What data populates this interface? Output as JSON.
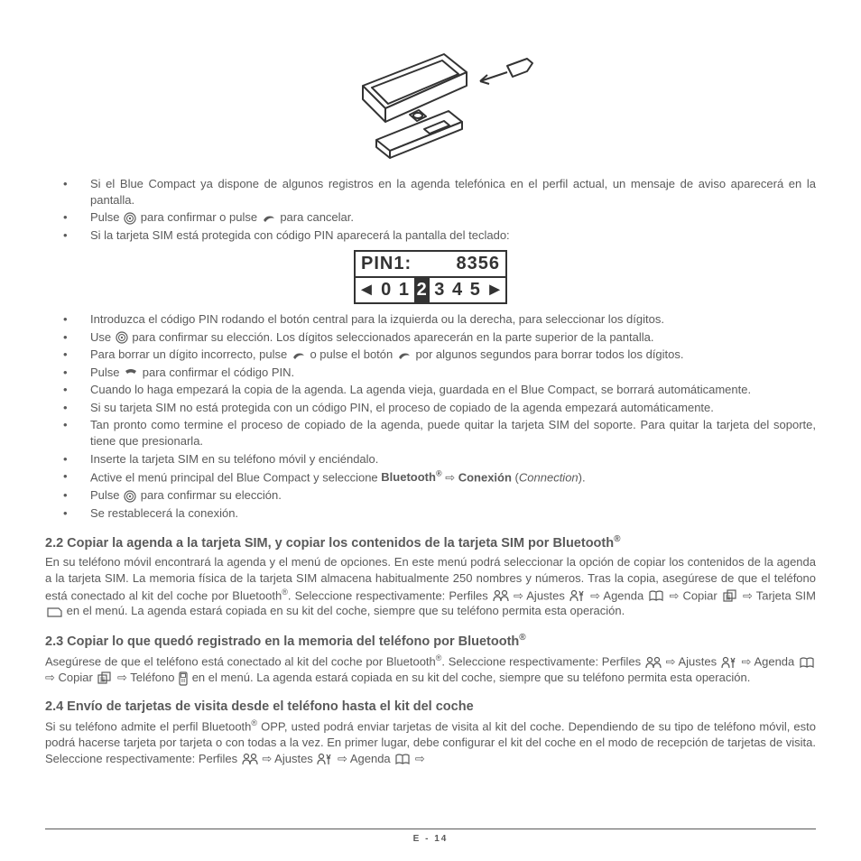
{
  "bullets1": [
    "Si el Blue Compact ya dispone de algunos registros en la agenda telefónica en el perfil actual, un mensaje de aviso aparecerá en la pantalla.",
    "Pulse __ICON_DIAL__ para confirmar o pulse __ICON_PHONE__ para cancelar.",
    "Si la tarjeta SIM está protegida con código PIN aparecerá la pantalla del teclado:"
  ],
  "pin": {
    "label": "PIN1:",
    "value": "8356",
    "digits": [
      "0",
      "1",
      "2",
      "3",
      "4",
      "5"
    ],
    "selected_index": 2
  },
  "bullets2": [
    "Introduzca el código PIN rodando el botón central para la izquierda ou la derecha, para seleccionar los dígitos.",
    "Use __ICON_DIAL__ para confirmar su elección. Los dígitos seleccionados aparecerán en la parte superior de la pantalla.",
    "Para borrar un dígito incorrecto, pulse __ICON_PHONE__ o pulse el botón __ICON_PHONE__ por algunos segundos para borrar todos los dígitos.",
    "Pulse __ICON_HANG__ para confirmar el código PIN.",
    "Cuando lo haga empezará la copia de la agenda. La agenda vieja, guardada en el Blue Compact, se borrará automáticamente.",
    "Si su tarjeta SIM no está protegida con un código PIN, el proceso de copiado de la agenda empezará automáticamente.",
    "Tan pronto como termine el proceso de copiado de la agenda, puede quitar la tarjeta SIM del soporte. Para quitar la tarjeta del soporte, tiene que presionarla.",
    "Inserte la tarjeta SIM en su teléfono móvil y enciéndalo.",
    "Active el menú principal del Blue Compact y seleccione <b>Bluetooth<sup>®</sup></b> ⇨ <b>Conexión</b> (<i>Connection</i>).",
    "Pulse __ICON_DIAL__ para confirmar su elección.",
    "Se restablecerá la conexión."
  ],
  "section22": {
    "title": "2.2 Copiar la agenda a la tarjeta SIM, y copiar los contenidos de la tarjeta SIM por Bluetooth",
    "body": "En su teléfono móvil encontrará la agenda y el menú de opciones. En este menú podrá seleccionar la opción de copiar los contenidos de la agenda a la tarjeta SIM. La memoria física de la tarjeta SIM almacena habitualmente 250 nombres y números. Tras la copia, asegúrese de que el teléfono está conectado al kit del coche por Bluetooth<sup>®</sup>. Seleccione respectivamente: Perfiles __ICON_PROF__ ⇨ Ajustes __ICON_SET__ ⇨ Agenda __ICON_BOOK__ ⇨ Copiar __ICON_COPY__ ⇨ Tarjeta SIM __ICON_SIM__ en el menú. La agenda estará copiada en su kit del coche, siempre que su teléfono permita esta operación."
  },
  "section23": {
    "title": "2.3 Copiar lo que quedó registrado en la memoria del teléfono por Bluetooth",
    "body": "Asegúrese de que el teléfono está conectado al kit del coche por Bluetooth<sup>®</sup>. Seleccione respectivamente: Perfiles __ICON_PROF__ ⇨ Ajustes __ICON_SET__ ⇨ Agenda __ICON_BOOK__ ⇨ Copiar __ICON_COPY__ ⇨ Teléfono __ICON_TEL__ en el menú. La agenda estará copiada en su kit del coche, siempre que su teléfono permita esta operación."
  },
  "section24": {
    "title": "2.4 Envío de tarjetas de visita desde el teléfono hasta el kit del coche",
    "body": "Si su teléfono admite el perfil Bluetooth<sup>®</sup> OPP, usted podrá enviar tarjetas de visita al kit del coche. Dependiendo de su tipo de teléfono móvil, esto podrá hacerse tarjeta por tarjeta o con todas a la vez. En primer lugar, debe configurar el kit del coche en el modo de recepción de tarjetas de visita. Seleccione respectivamente: Perfiles __ICON_PROF__ ⇨ Ajustes __ICON_SET__ ⇨ Agenda __ICON_BOOK__ ⇨"
  },
  "footer": "E - 14",
  "icons": {
    "dial": "<svg class='inline-icon' width='14' height='14' viewBox='0 0 14 14'><circle cx='7' cy='7' r='6' fill='none' stroke='#5a5a5a' stroke-width='1.2'/><circle cx='7' cy='7' r='3.5' fill='none' stroke='#5a5a5a' stroke-width='1'/><circle cx='7' cy='7' r='1.2' fill='#5a5a5a'/></svg>",
    "phone": "<svg class='inline-icon' width='16' height='12' viewBox='0 0 16 12'><path d='M2 8 Q5 2 12 4 L14 6 Q8 4 4 10 Z' fill='#5a5a5a'/></svg>",
    "hang": "<svg class='inline-icon' width='16' height='12' viewBox='0 0 16 12'><path d='M2 4 Q8 0 14 4 L12 7 Q8 4 4 7 Z' fill='#5a5a5a'/></svg>",
    "prof": "<svg class='inline-icon' width='18' height='15' viewBox='0 0 18 15'><circle cx='5' cy='4' r='2.5' fill='none' stroke='#5a5a5a' stroke-width='1.2'/><path d='M1 13 Q1 8 5 8 Q9 8 9 13' fill='none' stroke='#5a5a5a' stroke-width='1.2'/><circle cx='13' cy='4' r='2.5' fill='none' stroke='#5a5a5a' stroke-width='1.2'/><path d='M9 13 Q9 8 13 8 Q17 8 17 13' fill='none' stroke='#5a5a5a' stroke-width='1.2'/></svg>",
    "set": "<svg class='inline-icon' width='18' height='15' viewBox='0 0 18 15'><circle cx='5' cy='4' r='2.5' fill='none' stroke='#5a5a5a' stroke-width='1.2'/><path d='M1 13 Q1 8 5 8 Q9 8 9 13' fill='none' stroke='#5a5a5a' stroke-width='1.2'/><path d='M11 2 L13 6 L15 2 M11 6 L15 6 M13 6 L13 13' stroke='#5a5a5a' stroke-width='1.3' fill='none'/></svg>",
    "book": "<svg class='inline-icon' width='18' height='13' viewBox='0 0 18 13'><path d='M2 2 Q5 0 9 2 L9 11 Q5 9 2 11 Z M9 2 Q13 0 16 2 L16 11 Q13 9 9 11' fill='none' stroke='#5a5a5a' stroke-width='1.2'/></svg>",
    "copy": "<svg class='inline-icon' width='18' height='15' viewBox='0 0 18 15'><rect x='2' y='4' width='9' height='9' fill='none' stroke='#5a5a5a' stroke-width='1.2'/><rect x='6' y='1' width='9' height='9' fill='none' stroke='#5a5a5a' stroke-width='1.2'/><path d='M4 7 L9 7 M4 9 L9 9 M4 11 L9 11' stroke='#5a5a5a' stroke-width='0.8'/></svg>",
    "sim": "<svg class='inline-icon' width='18' height='13' viewBox='0 0 18 13'><path d='M2 2 L14 2 L17 5 L17 11 L2 11 Z' fill='none' stroke='#5a5a5a' stroke-width='1.2'/></svg>",
    "tel": "<svg class='inline-icon' width='10' height='16' viewBox='0 0 10 16'><rect x='1' y='1' width='8' height='14' rx='1.5' fill='none' stroke='#5a5a5a' stroke-width='1.2'/><rect x='2.5' y='2.5' width='5' height='4' fill='none' stroke='#5a5a5a' stroke-width='0.9'/><circle cx='3.5' cy='9' r='0.6' fill='#5a5a5a'/><circle cx='5' cy='9' r='0.6' fill='#5a5a5a'/><circle cx='6.5' cy='9' r='0.6' fill='#5a5a5a'/><circle cx='3.5' cy='11' r='0.6' fill='#5a5a5a'/><circle cx='5' cy='11' r='0.6' fill='#5a5a5a'/><circle cx='6.5' cy='11' r='0.6' fill='#5a5a5a'/></svg>"
  }
}
